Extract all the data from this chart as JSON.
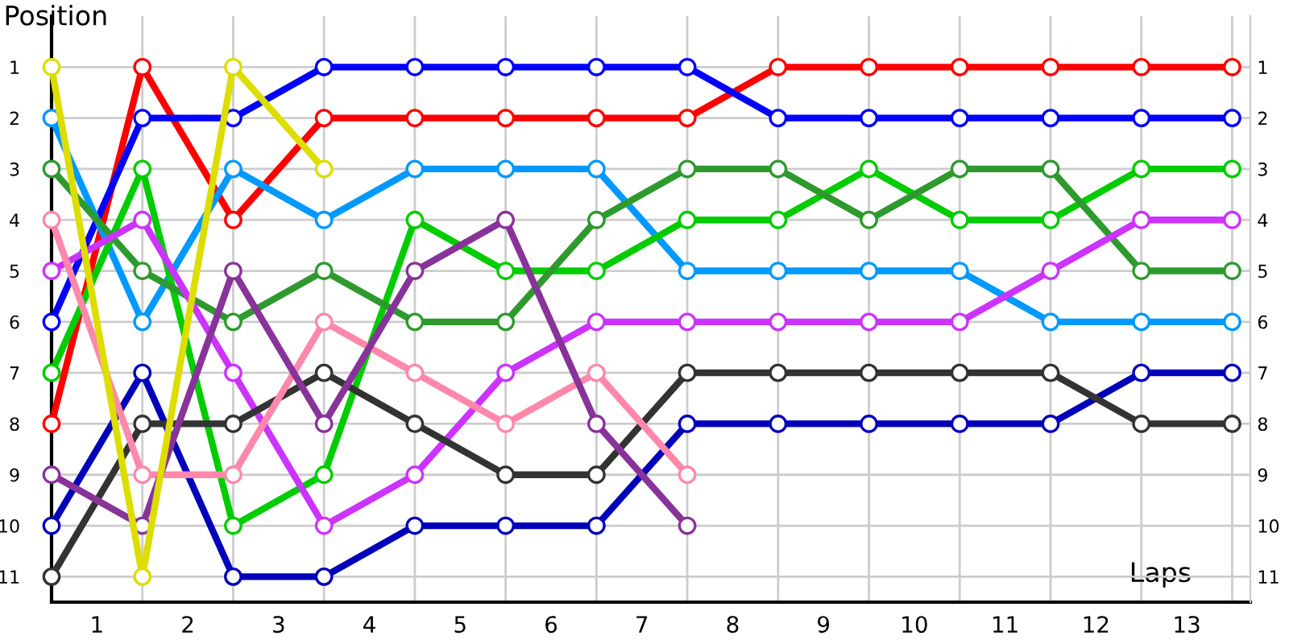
{
  "chart_data": {
    "type": "line",
    "xlabel": "Laps",
    "ylabel": "Position",
    "x": [
      0,
      1,
      2,
      3,
      4,
      5,
      6,
      7,
      8,
      9,
      10,
      11,
      12,
      13
    ],
    "xlim": [
      0,
      13.2
    ],
    "xticks": [
      {
        "value": 0.5,
        "label": "1"
      },
      {
        "value": 1.5,
        "label": "2"
      },
      {
        "value": 2.5,
        "label": "3"
      },
      {
        "value": 3.5,
        "label": "4"
      },
      {
        "value": 4.5,
        "label": "5"
      },
      {
        "value": 5.5,
        "label": "6"
      },
      {
        "value": 6.5,
        "label": "7"
      },
      {
        "value": 7.5,
        "label": "8"
      },
      {
        "value": 8.5,
        "label": "9"
      },
      {
        "value": 9.5,
        "label": "10"
      },
      {
        "value": 10.5,
        "label": "11"
      },
      {
        "value": 11.5,
        "label": "12"
      },
      {
        "value": 12.5,
        "label": "13"
      },
      {
        "value": 1,
        "label": null
      },
      {
        "value": 2,
        "label": null
      },
      {
        "value": 3,
        "label": null
      },
      {
        "value": 4,
        "label": null
      },
      {
        "value": 5,
        "label": null
      },
      {
        "value": 6,
        "label": null
      },
      {
        "value": 7,
        "label": null
      },
      {
        "value": 8,
        "label": null
      },
      {
        "value": 9,
        "label": null
      },
      {
        "value": 10,
        "label": null
      },
      {
        "value": 11,
        "label": null
      },
      {
        "value": 12,
        "label": null
      },
      {
        "value": 13,
        "label": null
      }
    ],
    "ylim": [
      11.5,
      0
    ],
    "yticks": [
      1,
      2,
      3,
      4,
      5,
      6,
      7,
      8,
      9,
      10,
      11
    ],
    "y2lim": [
      11.5,
      0
    ],
    "y2ticks": [
      1,
      2,
      3,
      4,
      5,
      6,
      7,
      8,
      9,
      10,
      11
    ],
    "grid": true,
    "marker": "circle",
    "line_style": "solid",
    "legend": false,
    "series": [
      {
        "color": "#ff0000",
        "values": [
          8,
          1,
          4,
          2,
          2,
          2,
          2,
          2,
          1,
          1,
          1,
          1,
          1,
          1
        ]
      },
      {
        "color": "#0000ff",
        "values": [
          6,
          2,
          2,
          1,
          1,
          1,
          1,
          1,
          2,
          2,
          2,
          2,
          2,
          2
        ]
      },
      {
        "color": "#0099ff",
        "values": [
          2,
          6,
          3,
          4,
          3,
          3,
          3,
          5,
          5,
          5,
          5,
          6,
          6,
          6
        ]
      },
      {
        "color": "#00cc00",
        "values": [
          7,
          3,
          10,
          9,
          4,
          5,
          5,
          4,
          4,
          3,
          4,
          4,
          3,
          3
        ]
      },
      {
        "color": "#2e9a2e",
        "values": [
          3,
          5,
          6,
          5,
          6,
          6,
          4,
          3,
          3,
          4,
          3,
          3,
          5,
          5
        ]
      },
      {
        "color": "#cc33ff",
        "values": [
          5,
          4,
          7,
          10,
          9,
          7,
          6,
          6,
          6,
          6,
          6,
          5,
          4,
          4
        ]
      },
      {
        "color": "#0000bb",
        "values": [
          10,
          7,
          11,
          11,
          10,
          10,
          10,
          8,
          8,
          8,
          8,
          8,
          7,
          7
        ]
      },
      {
        "color": "#333333",
        "values": [
          11,
          8,
          8,
          7,
          8,
          9,
          9,
          7,
          7,
          7,
          7,
          7,
          8,
          8
        ]
      },
      {
        "color": "#ff88aa",
        "values": [
          4,
          9,
          9,
          6,
          7,
          8,
          7,
          9,
          null,
          null,
          null,
          null,
          null,
          null
        ]
      },
      {
        "color": "#883399",
        "values": [
          9,
          10,
          5,
          8,
          5,
          4,
          8,
          10,
          null,
          null,
          null,
          null,
          null,
          null
        ]
      },
      {
        "color": "#dddd00",
        "values": [
          1,
          11,
          1,
          3,
          null,
          null,
          null,
          null,
          null,
          null,
          null,
          null,
          null,
          null
        ]
      }
    ]
  }
}
